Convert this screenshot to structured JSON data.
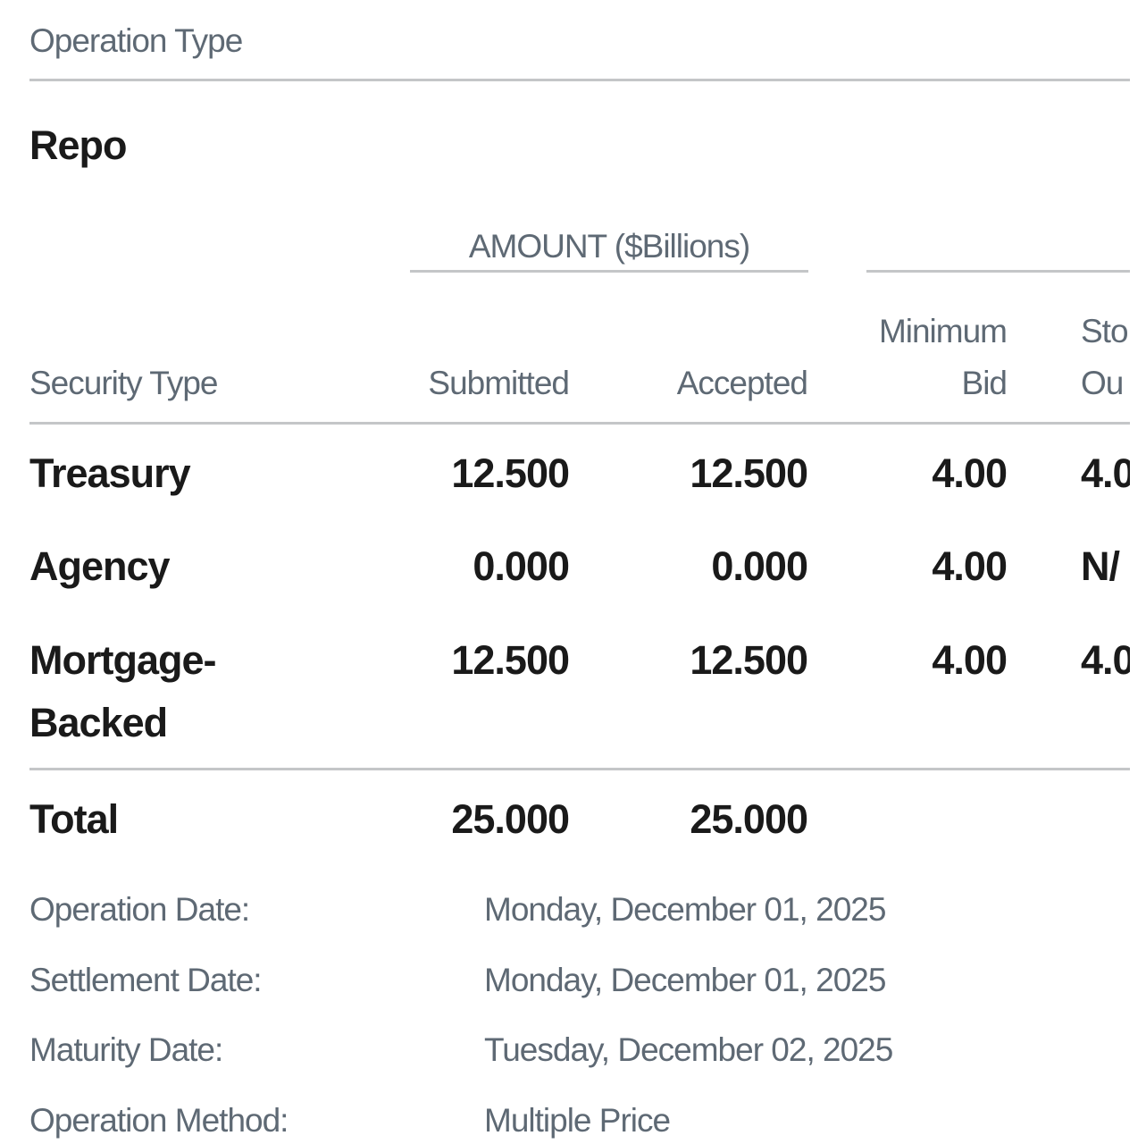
{
  "header": {
    "title": "Operation Type"
  },
  "operation_type": "Repo",
  "table": {
    "group_header": "AMOUNT ($Billions)",
    "columns": [
      [
        "Security Type"
      ],
      [
        "Submitted"
      ],
      [
        "Accepted"
      ],
      [
        "Minimum",
        "Bid"
      ],
      [
        "Sto",
        "Ou"
      ]
    ],
    "rows": [
      [
        "Treasury",
        "12.500",
        "12.500",
        "4.00",
        "4.0"
      ],
      [
        "Agency",
        "0.000",
        "0.000",
        "4.00",
        "N/"
      ],
      [
        "Mortgage-Backed",
        "12.500",
        "12.500",
        "4.00",
        "4.0"
      ]
    ],
    "total": [
      "Total",
      "25.000",
      "25.000"
    ]
  },
  "details": [
    {
      "label": "Operation Date:",
      "value": "Monday, December 01, 2025"
    },
    {
      "label": "Settlement Date:",
      "value": "Monday, December 01, 2025"
    },
    {
      "label": "Maturity Date:",
      "value": "Tuesday, December 02, 2025"
    },
    {
      "label": "Operation Method:",
      "value": "Multiple Price"
    }
  ]
}
